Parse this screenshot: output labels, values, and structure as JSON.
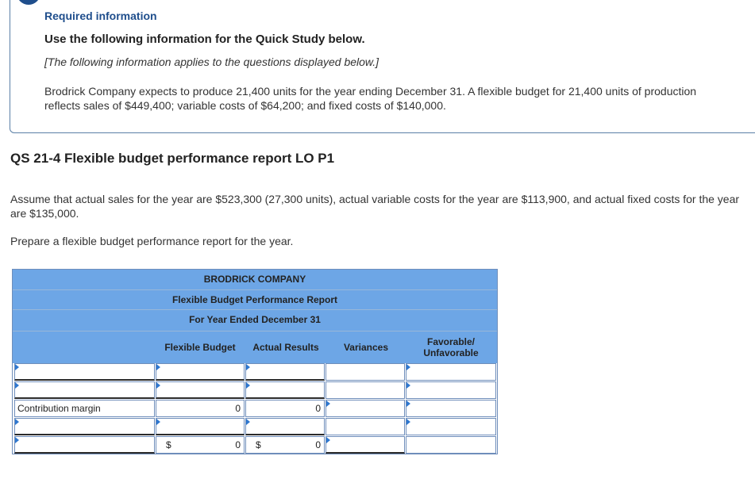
{
  "info": {
    "title": "Required information",
    "use_line": "Use the following information for the Quick Study below.",
    "applies": "[The following information applies to the questions displayed below.]",
    "paragraph": "Brodrick Company expects to produce 21,400 units for the year ending December 31. A flexible budget for 21,400 units of production reflects sales of $449,400; variable costs of $64,200; and fixed costs of $140,000."
  },
  "question": {
    "title": "QS 21-4 Flexible budget performance report LO P1",
    "assume": "Assume that actual sales for the year are $523,300 (27,300 units), actual variable costs for the year are $113,900, and actual fixed costs for the year are $135,000.",
    "prepare": "Prepare a flexible budget performance report for the year."
  },
  "report": {
    "company": "BRODRICK COMPANY",
    "report_title": "Flexible Budget Performance Report",
    "period": "For Year Ended December 31",
    "col_flexible": "Flexible Budget",
    "col_actual": "Actual Results",
    "col_variances": "Variances",
    "col_fav_line1": "Favorable/",
    "col_fav_line2": "Unfavorable",
    "rows": [
      {
        "label": "",
        "flexible": "",
        "actual": "",
        "variance": "",
        "fav": ""
      },
      {
        "label": "",
        "flexible": "",
        "actual": "",
        "variance": "",
        "fav": ""
      },
      {
        "label": "Contribution margin",
        "flexible": "0",
        "actual": "0",
        "variance": "",
        "fav": ""
      },
      {
        "label": "",
        "flexible": "",
        "actual": "",
        "variance": "",
        "fav": ""
      },
      {
        "label": "",
        "flexible_dollar": "$",
        "flexible": "0",
        "actual_dollar": "$",
        "actual": "0",
        "variance": "",
        "fav": ""
      }
    ]
  },
  "colors": {
    "header_blue": "#6da6e6",
    "title_blue": "#1f4e8c"
  }
}
